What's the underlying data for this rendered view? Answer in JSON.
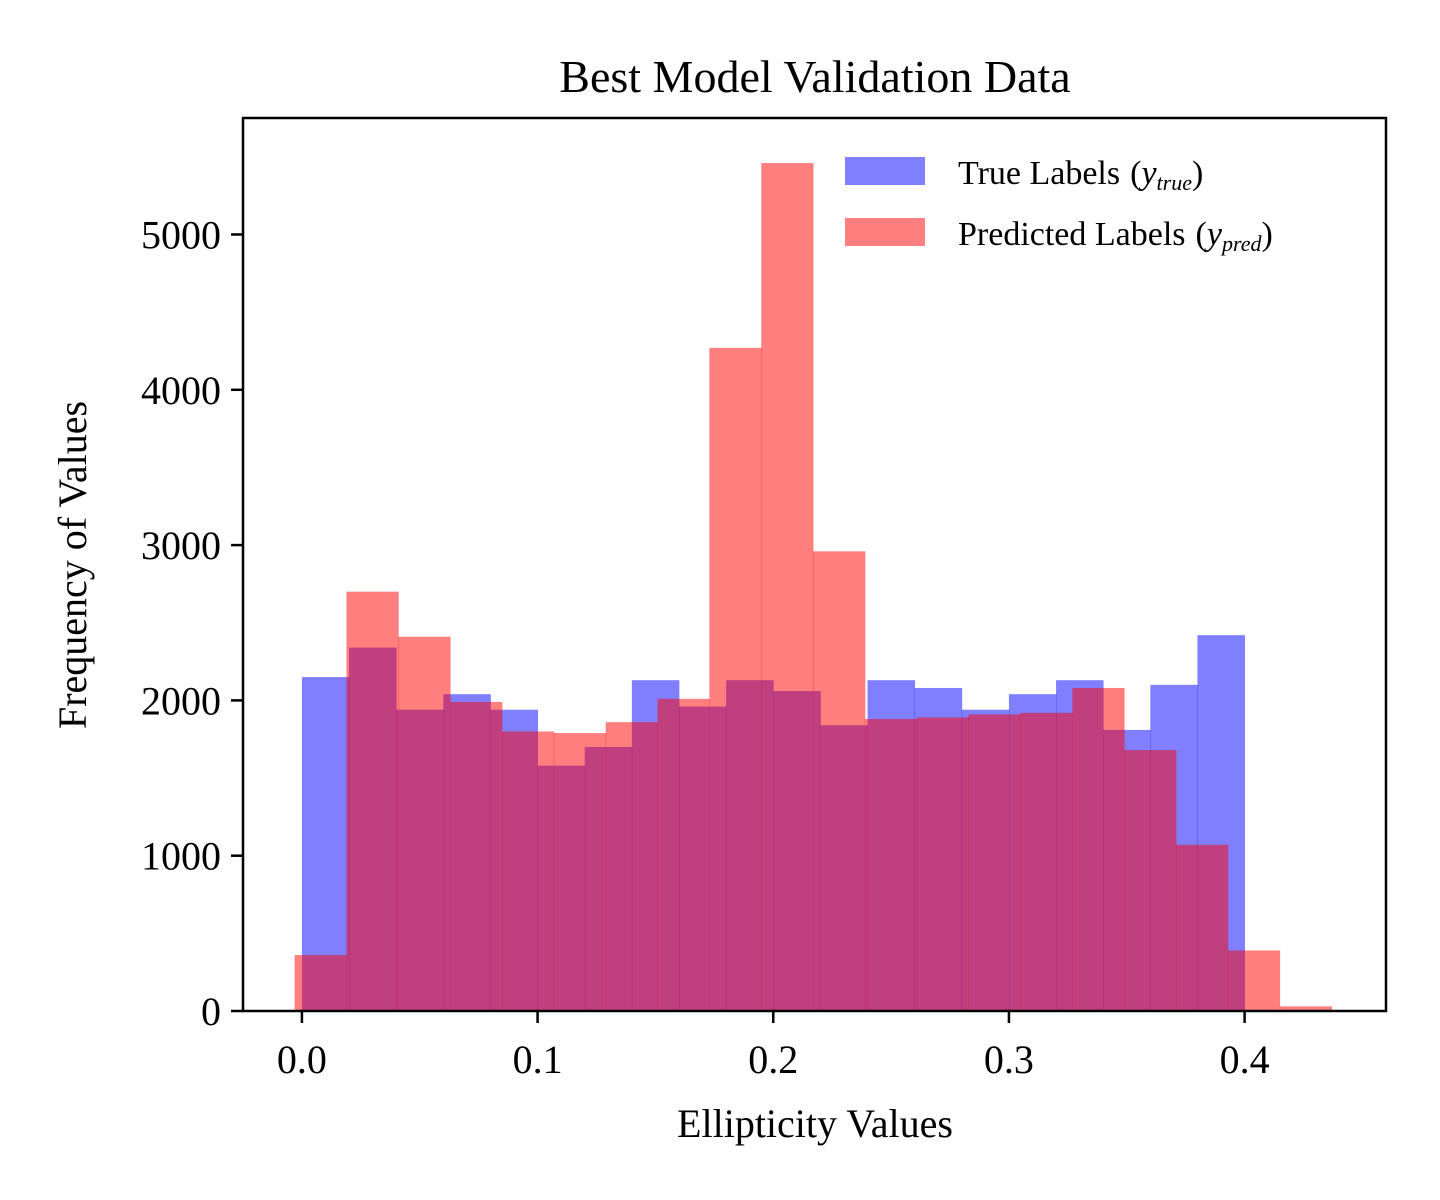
{
  "chart_data": {
    "type": "bar",
    "title": "Best Model Validation Data",
    "xlabel": "Ellipticity Values",
    "ylabel": "Frequency of Values",
    "xlim": [
      -0.025,
      0.46
    ],
    "ylim": [
      0,
      5750
    ],
    "x_ticks": [
      0.0,
      0.1,
      0.2,
      0.3,
      0.4
    ],
    "x_tick_labels": [
      "0.0",
      "0.1",
      "0.2",
      "0.3",
      "0.4"
    ],
    "y_ticks": [
      0,
      1000,
      2000,
      3000,
      4000,
      5000
    ],
    "y_tick_labels": [
      "0",
      "1000",
      "2000",
      "3000",
      "4000",
      "5000"
    ],
    "grid": false,
    "legend_position": "top-right",
    "series": [
      {
        "name": "True Labels",
        "name_math": "y_true",
        "color": "#0000ff",
        "opacity": 0.5,
        "bin_start": 0.0,
        "bin_width": 0.02,
        "values": [
          2150,
          2340,
          1940,
          2040,
          1940,
          1580,
          1700,
          2130,
          1960,
          2130,
          2060,
          1840,
          2130,
          2080,
          1940,
          2040,
          2130,
          1810,
          2100,
          2420
        ]
      },
      {
        "name": "Predicted Labels",
        "name_math": "y_pred",
        "color": "#ff0000",
        "opacity": 0.5,
        "bin_start": -0.0031,
        "bin_width": 0.022,
        "values": [
          360,
          2700,
          2410,
          1990,
          1800,
          1790,
          1860,
          2010,
          4270,
          5460,
          2960,
          1880,
          1890,
          1910,
          1920,
          2080,
          1680,
          1070,
          390,
          30
        ]
      }
    ]
  }
}
